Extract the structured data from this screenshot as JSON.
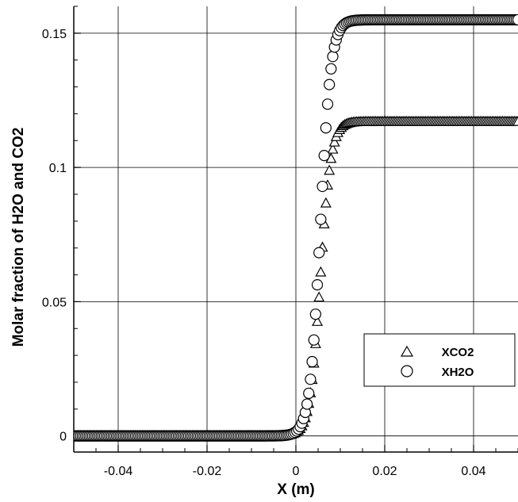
{
  "chart_data": {
    "type": "scatter",
    "title": "",
    "xlabel": "X (m)",
    "ylabel": "Molar fraction of H2O and CO2",
    "xlim": [
      -0.05,
      0.05
    ],
    "ylim": [
      -0.006,
      0.16
    ],
    "grid": true,
    "legend_position": "right-lower",
    "x_ticks": [
      -0.04,
      -0.02,
      0,
      0.02,
      0.04
    ],
    "x_tick_labels": [
      "-0.04",
      "-0.02",
      "0",
      "0.02",
      "0.04"
    ],
    "y_ticks": [
      0,
      0.05,
      0.1,
      0.15
    ],
    "y_tick_labels": [
      "0",
      "0.05",
      "0.1",
      "0.15"
    ],
    "series": [
      {
        "name": "XCO2",
        "marker": "triangle",
        "color": "#000000",
        "profile": {
          "x_center": 0.0055,
          "width": 0.0012,
          "max": 0.117
        },
        "x_range": [
          -0.05,
          0.05
        ],
        "n_points": 260
      },
      {
        "name": "XH2O",
        "marker": "circle",
        "color": "#000000",
        "profile": {
          "x_center": 0.0055,
          "width": 0.0012,
          "max": 0.155
        },
        "x_range": [
          -0.05,
          0.05
        ],
        "n_points": 260
      }
    ]
  }
}
